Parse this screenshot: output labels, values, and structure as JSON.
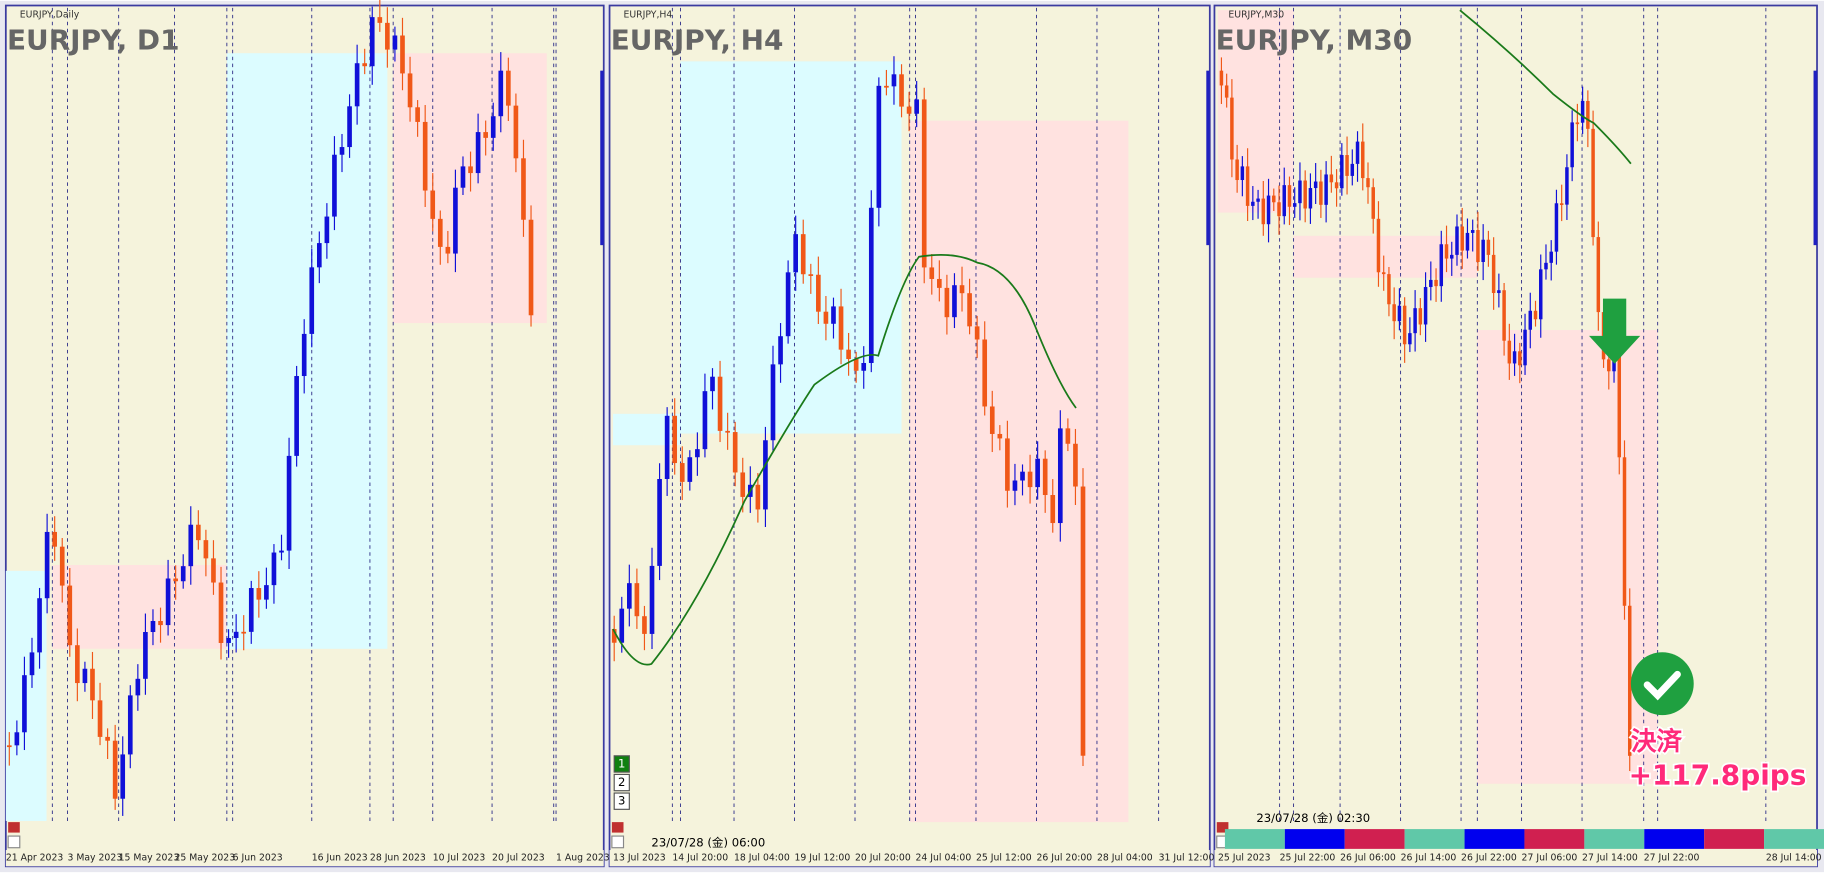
{
  "panels": [
    {
      "label": "EURJPY,Daily",
      "title": "EURJPY, D1",
      "dates": [
        "21 Apr 2023",
        "3 May 2023",
        "15 May 2023",
        "25 May 2023",
        "6 Jun 2023",
        "16 Jun 2023",
        "28 Jun 2023",
        "10 Jul 2023",
        "20 Jul 2023",
        "1 Aug 2023"
      ]
    },
    {
      "label": "EURJPY,H4",
      "title": "EURJPY, H4",
      "dates": [
        "13 Jul 2023",
        "14 Jul 20:00",
        "18 Jul 04:00",
        "19 Jul 12:00",
        "20 Jul 20:00",
        "24 Jul 04:00",
        "25 Jul 12:00",
        "26 Jul 20:00",
        "28 Jul 04:00",
        "31 Jul 12:00"
      ],
      "buttons": [
        "1",
        "2",
        "3"
      ],
      "timestamp": "23/07/28 (金) 06:00"
    },
    {
      "label": "EURJPY,M30",
      "title": "EURJPY, M30",
      "dates": [
        "25 Jul 2023",
        "25 Jul 22:00",
        "26 Jul 06:00",
        "26 Jul 14:00",
        "26 Jul 22:00",
        "27 Jul 06:00",
        "27 Jul 14:00",
        "27 Jul 22:00",
        "28 Jul 14:00"
      ],
      "timestamp": "23/07/28 (金) 02:30",
      "result": {
        "label": "決済",
        "pips": "+117.8pips"
      }
    }
  ]
}
